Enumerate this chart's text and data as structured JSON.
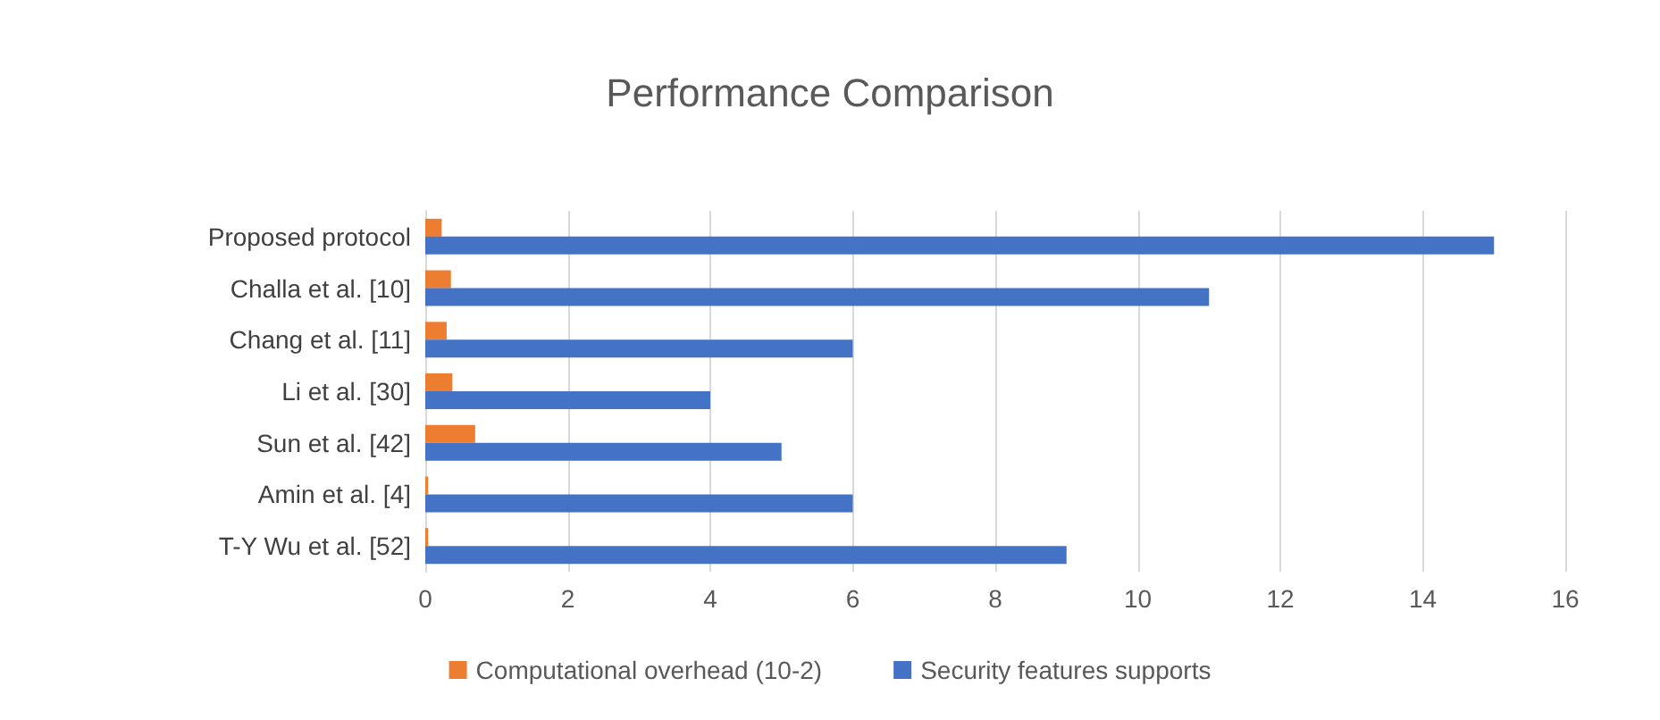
{
  "chart_data": {
    "type": "bar",
    "orientation": "horizontal",
    "title": "Performance Comparison",
    "categories": [
      "Proposed protocol",
      "Challa et al. [10]",
      "Chang et al. [11]",
      "Li et al. [30]",
      "Sun et al. [42]",
      "Amin et al. [4]",
      "T-Y Wu et al. [52]"
    ],
    "series": [
      {
        "name": "Computational overhead (10-2)",
        "color": "#ed7d31",
        "values": [
          0.23,
          0.36,
          0.3,
          0.38,
          0.7,
          0.04,
          0.04
        ]
      },
      {
        "name": "Security features supports",
        "color": "#4472c4",
        "values": [
          15,
          11,
          6,
          4,
          5,
          6,
          9
        ]
      }
    ],
    "xlim": [
      0,
      16
    ],
    "xticks": [
      0,
      2,
      4,
      6,
      8,
      10,
      12,
      14,
      16
    ],
    "grid": "x",
    "legend": "bottom"
  }
}
